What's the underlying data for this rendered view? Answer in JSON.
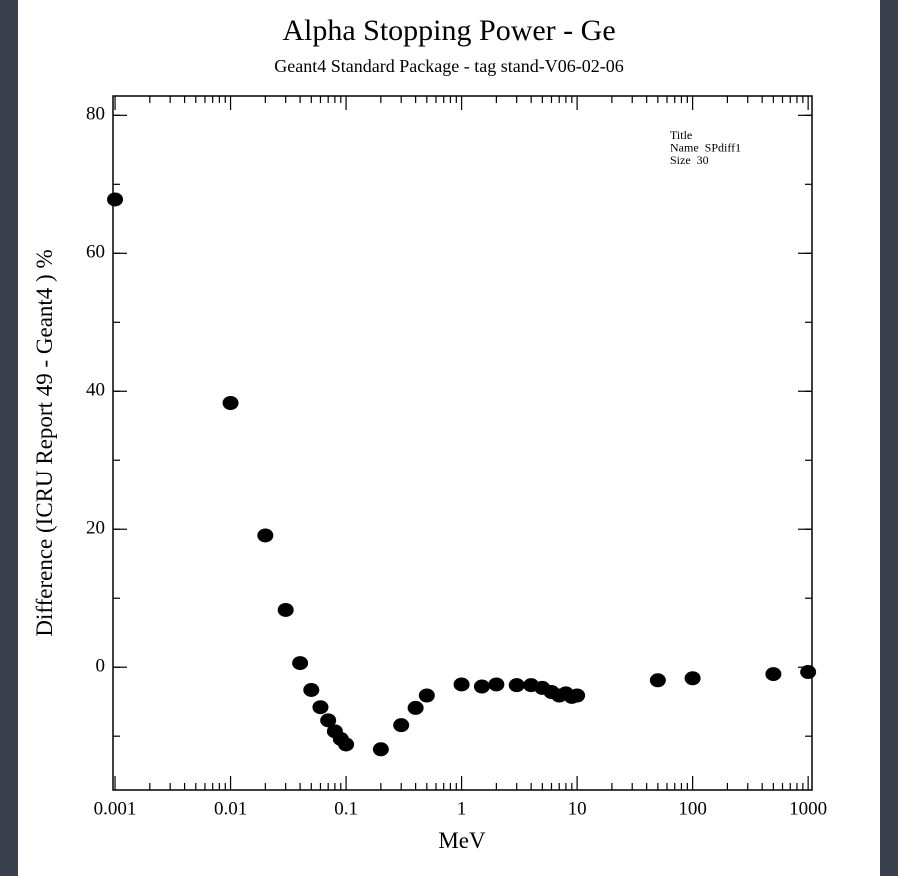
{
  "chart_data": {
    "type": "scatter",
    "title": "Alpha Stopping Power - Ge",
    "subtitle": "Geant4 Standard Package - tag  stand-V06-02-06",
    "x_label": "MeV",
    "y_label": "Difference (ICRU Report 49 - Geant4 ) %",
    "stats": [
      "Title",
      "Name  SPdiff1",
      "Size  30"
    ],
    "x_scale": "log",
    "color": "#000000",
    "xlim": [
      0.00096,
      1080
    ],
    "ylim": [
      -17.8,
      82.8
    ],
    "xticks": [
      0.001,
      0.01,
      0.1,
      1,
      10,
      100,
      1000
    ],
    "yticks": [
      0,
      20,
      40,
      60,
      80
    ],
    "x": [
      0.001,
      0.01,
      0.02,
      0.03,
      0.04,
      0.05,
      0.06,
      0.07,
      0.08,
      0.09,
      0.1,
      0.2,
      0.3,
      0.4,
      0.5,
      1,
      1.5,
      2,
      3,
      4,
      5,
      6,
      7,
      8,
      9,
      10,
      50,
      100,
      500,
      1000
    ],
    "values": [
      67.8,
      38.3,
      19.1,
      8.3,
      0.6,
      -3.3,
      -5.8,
      -7.7,
      -9.3,
      -10.4,
      -11.2,
      -11.9,
      -8.4,
      -5.9,
      -4.1,
      -2.5,
      -2.8,
      -2.5,
      -2.6,
      -2.6,
      -3.0,
      -3.6,
      -4.1,
      -3.8,
      -4.3,
      -4.1,
      -1.9,
      -1.6,
      -1.0,
      -0.7
    ]
  }
}
